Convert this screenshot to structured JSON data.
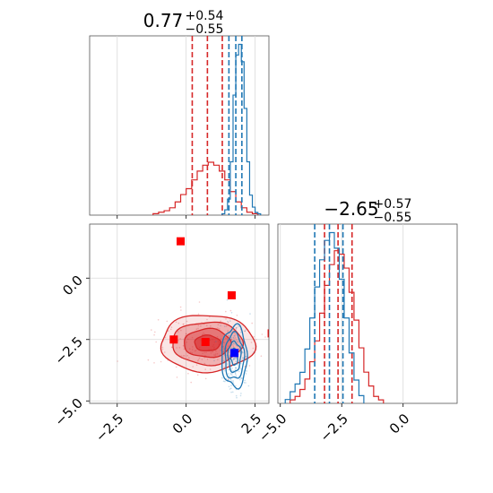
{
  "chart_data": {
    "type": "corner",
    "grid": true,
    "colors": {
      "red": "#d62728",
      "blue": "#1f77b4",
      "marker_blue": "#0000ff",
      "marker_red": "#ff0000"
    },
    "panels": [
      {
        "id": "hist-param-1",
        "type": "histogram",
        "title": {
          "main": "0.77",
          "sup": "+0.54",
          "sub": "−0.55"
        },
        "xlim": [
          -3.5,
          3.0
        ],
        "xticks": [
          -2.5,
          0.0,
          2.5
        ],
        "show_xticklabels": false,
        "series": [
          {
            "name": "",
            "color": "#d62728",
            "bin_edges": [
              -1.2,
              -1.0,
              -0.8,
              -0.6,
              -0.4,
              -0.2,
              0.0,
              0.2,
              0.4,
              0.6,
              0.8,
              1.0,
              1.2,
              1.4,
              1.6,
              1.8,
              2.0,
              2.2,
              2.4,
              2.6
            ],
            "counts": [
              1,
              2,
              3,
              5,
              9,
              14,
              18,
              24,
              30,
              34,
              36,
              34,
              30,
              24,
              16,
              9,
              5,
              2,
              1
            ],
            "quantile_lines": [
              0.22,
              0.77,
              1.31
            ]
          },
          {
            "name": "",
            "color": "#1f77b4",
            "bin_edges": [
              1.3,
              1.4,
              1.5,
              1.6,
              1.7,
              1.8,
              1.9,
              2.0,
              2.1,
              2.2,
              2.3,
              2.4,
              2.5,
              2.6,
              2.7
            ],
            "counts": [
              1,
              4,
              12,
              40,
              90,
              120,
              128,
              115,
              80,
              40,
              15,
              6,
              2,
              1
            ],
            "quantile_lines": [
              1.55,
              1.8,
              2.02
            ]
          }
        ]
      },
      {
        "id": "hist-param-2",
        "type": "histogram",
        "title": {
          "main": "−2.65",
          "sup": "+0.57",
          "sub": "−0.55"
        },
        "xlim": [
          -5.1,
          2.2
        ],
        "xticks": [
          -5.0,
          -2.5,
          0.0
        ],
        "xticklabels": [
          "−5.0",
          "−2.5",
          "0.0"
        ],
        "series": [
          {
            "name": "",
            "color": "#d62728",
            "bin_edges": [
              -4.6,
              -4.4,
              -4.2,
              -4.0,
              -3.8,
              -3.6,
              -3.4,
              -3.2,
              -3.0,
              -2.8,
              -2.6,
              -2.4,
              -2.2,
              -2.0,
              -1.8,
              -1.6,
              -1.4,
              -1.2,
              -1.0,
              -0.8
            ],
            "counts": [
              1,
              2,
              4,
              7,
              12,
              18,
              26,
              34,
              40,
              44,
              43,
              39,
              32,
              24,
              16,
              9,
              5,
              2,
              1
            ],
            "quantile_lines": [
              -3.2,
              -2.65,
              -2.08
            ]
          },
          {
            "name": "",
            "color": "#1f77b4",
            "bin_edges": [
              -4.8,
              -4.6,
              -4.4,
              -4.2,
              -4.0,
              -3.8,
              -3.6,
              -3.4,
              -3.2,
              -3.0,
              -2.8,
              -2.6,
              -2.4,
              -2.2,
              -2.0,
              -1.8,
              -1.6
            ],
            "counts": [
              1,
              3,
              5,
              8,
              14,
              22,
              30,
              37,
              42,
              44,
              40,
              32,
              22,
              13,
              6,
              2
            ],
            "quantile_lines": [
              -3.6,
              -3.0,
              -2.45
            ]
          }
        ]
      },
      {
        "id": "joint-param-1-2",
        "type": "contour",
        "xlim": [
          -3.5,
          3.0
        ],
        "ylim": [
          -5.1,
          2.2
        ],
        "xticks": [
          -2.5,
          0.0,
          2.5
        ],
        "xticklabels": [
          "−2.5",
          "0.0",
          "2.5"
        ],
        "yticks": [
          -5.0,
          -2.5,
          0.0
        ],
        "yticklabels": [
          "−5.0",
          "−2.5",
          "0.0"
        ],
        "distributions": [
          {
            "color": "#d62728",
            "center": [
              0.77,
              -2.65
            ],
            "sigma": [
              0.85,
              0.58
            ]
          },
          {
            "color": "#1f77b4",
            "center": [
              1.75,
              -3.2
            ],
            "sigma": [
              0.23,
              0.62
            ]
          }
        ],
        "markers": [
          {
            "x": -0.2,
            "y": 1.5,
            "color": "#ff0000"
          },
          {
            "x": 1.65,
            "y": -0.7,
            "color": "#ff0000"
          },
          {
            "x": -0.45,
            "y": -2.5,
            "color": "#ff0000"
          },
          {
            "x": 0.7,
            "y": -2.6,
            "color": "#ff0000"
          },
          {
            "x": 3.1,
            "y": -2.25,
            "color": "#ff0000"
          },
          {
            "x": 1.75,
            "y": -3.05,
            "color": "#0000ff"
          }
        ]
      }
    ]
  }
}
